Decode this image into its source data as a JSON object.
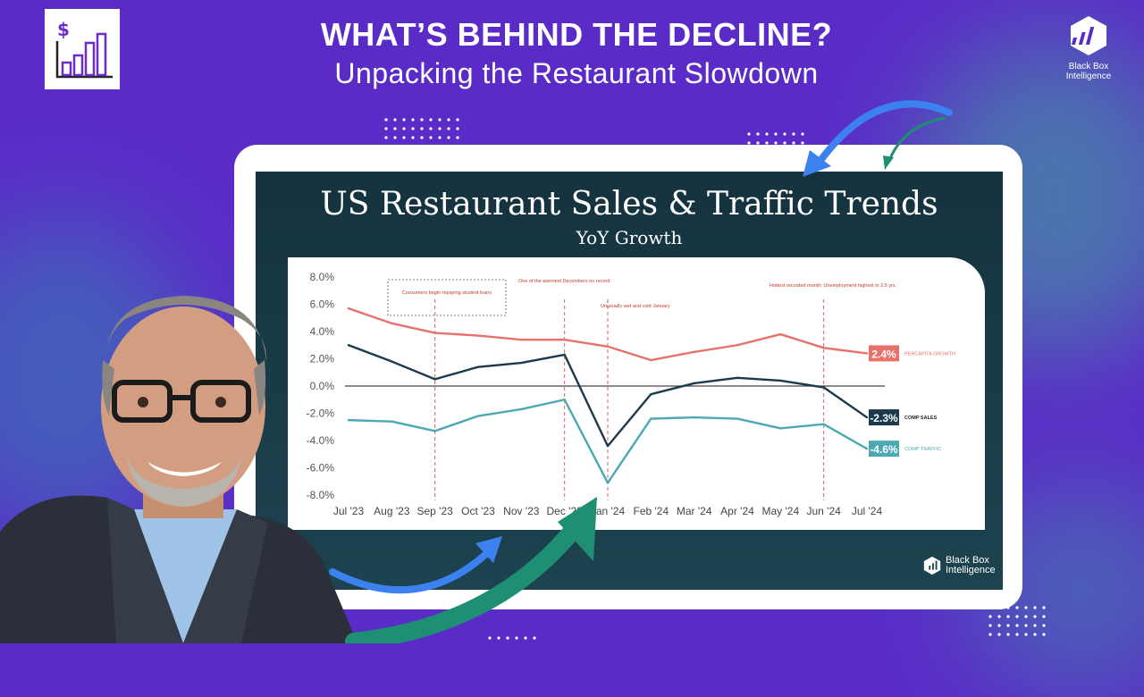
{
  "header": {
    "title": "WHAT’S BEHIND THE DECLINE?",
    "subtitle": "Unpacking the Restaurant Slowdown"
  },
  "brand": {
    "name_line1": "Black Box",
    "name_line2": "Intelligence",
    "logo_icon": "hexagon-bars-icon",
    "top_logo_icon": "dollar-bar-chart-icon"
  },
  "colors": {
    "background": "#5b2bc8",
    "per_capita": "#e8716a",
    "comp_sales": "#1b3a4b",
    "comp_traffic": "#4ca9b4",
    "event_line": "#e65b5b",
    "arrow_blue": "#3b82f0",
    "arrow_teal": "#1f8f74"
  },
  "chart_data": {
    "type": "line",
    "title": "US Restaurant Sales & Traffic Trends",
    "subtitle": "YoY Growth",
    "categories": [
      "Jul '23",
      "Aug '23",
      "Sep '23",
      "Oct '23",
      "Nov '23",
      "Dec '23",
      "Jan '24",
      "Feb '24",
      "Mar '24",
      "Apr '24",
      "May '24",
      "Jun '24",
      "Jul '24"
    ],
    "ylim": [
      -8,
      8
    ],
    "yticks": [
      -8,
      -6,
      -4,
      -2,
      0,
      2,
      4,
      6,
      8
    ],
    "ytick_labels": [
      "-8.0%",
      "-6.0%",
      "-4.0%",
      "-2.0%",
      "0.0%",
      "2.0%",
      "4.0%",
      "6.0%",
      "8.0%"
    ],
    "series": [
      {
        "name": "PERCAPITA GROWTH",
        "end_label": "2.4%",
        "values": [
          5.7,
          4.6,
          3.9,
          3.7,
          3.4,
          3.4,
          2.9,
          1.9,
          2.5,
          3.0,
          3.8,
          2.8,
          2.4
        ]
      },
      {
        "name": "COMP SALES",
        "end_label": "-2.3%",
        "values": [
          3.0,
          1.8,
          0.5,
          1.4,
          1.7,
          2.3,
          -4.4,
          -0.6,
          0.2,
          0.6,
          0.4,
          -0.1,
          -2.3
        ]
      },
      {
        "name": "COMP TRAFFIC",
        "end_label": "-4.6%",
        "values": [
          -2.5,
          -2.6,
          -3.3,
          -2.2,
          -1.7,
          -1.0,
          -7.1,
          -2.4,
          -2.3,
          -2.4,
          -3.1,
          -2.8,
          -4.6
        ]
      }
    ],
    "annotations": [
      {
        "text": "Consumers begin repaying student loans",
        "x_index": 2,
        "boxed": true
      },
      {
        "text": "One of the warmest Decembers on record",
        "x_index": 5
      },
      {
        "text": "Unusually wet and cold January",
        "x_index": 6
      },
      {
        "text": "Hottest recorded month; Unemployment highest in 2.5 yrs.",
        "x_index": 11
      }
    ],
    "grid": false,
    "legend": "inline-right"
  }
}
